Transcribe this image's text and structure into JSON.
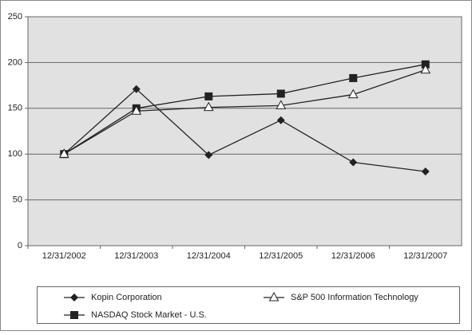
{
  "chart_data": {
    "type": "line",
    "categories": [
      "12/31/2002",
      "12/31/2003",
      "12/31/2004",
      "12/31/2005",
      "12/31/2006",
      "12/31/2007"
    ],
    "series": [
      {
        "name": "Kopin Corporation",
        "color": "#222222",
        "marker": "diamond",
        "values": [
          100,
          171,
          99,
          137,
          91,
          81
        ]
      },
      {
        "name": "NASDAQ Stock Market - U.S.",
        "color": "#222222",
        "marker": "square",
        "values": [
          100,
          150,
          163,
          166,
          183,
          198
        ]
      },
      {
        "name": "S&P 500 Information Technology",
        "color": "#222222",
        "marker": "triangle",
        "values": [
          100,
          147,
          151,
          153,
          165,
          192
        ]
      }
    ],
    "ylim": [
      0,
      250
    ],
    "yticks": [
      0,
      50,
      100,
      150,
      200,
      250
    ],
    "grid": true
  }
}
